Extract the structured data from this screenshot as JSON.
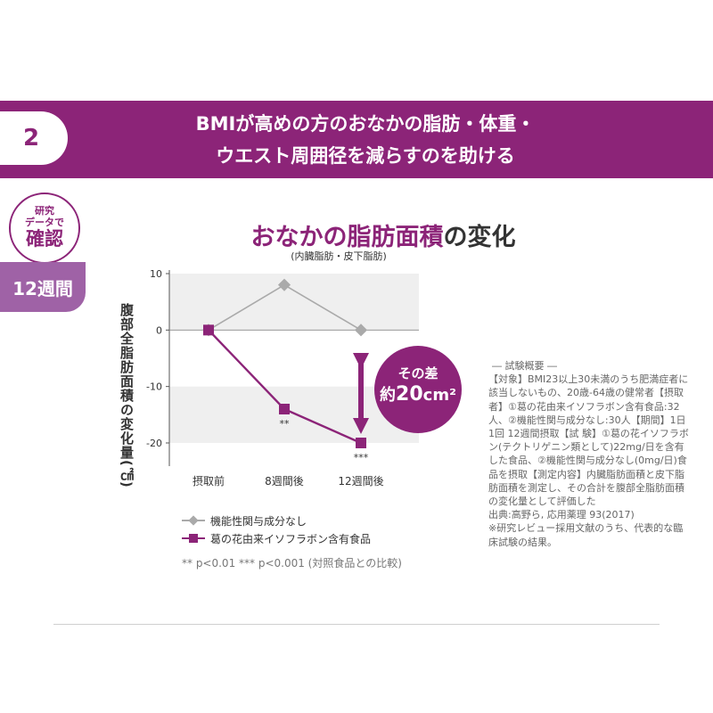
{
  "banner": {
    "number": "2",
    "line1": "BMIが高めの方のおなかの脂肪・体重・",
    "line2": "ウエスト周囲径を減らすのを助ける"
  },
  "badge": {
    "small1": "研究",
    "small2": "データで",
    "big": "確認"
  },
  "period": "12週間",
  "title_accent": "おなかの脂肪面積",
  "title_rest": "の変化",
  "subtitle": "(内臓脂肪・皮下脂肪)",
  "difference": {
    "line1": "その差",
    "prefix": "約",
    "value": "20",
    "unit": "cm²"
  },
  "legend": {
    "control": "機能性関与成分なし",
    "treatment": "葛の花由来イソフラボン含有食品"
  },
  "note": "** p<0.01 *** p<0.001 (対照食品との比較)",
  "info": {
    "heading": "― 試験概要 ―",
    "body": "【対象】BMI23以上30未満のうち肥満症者に該当しないもの、20歳-64歳の健常者【摂取者】①葛の花由来イソフラボン含有食品:32人、②機能性関与成分なし:30人【期間】1日1回 12週間摂取【試 験】①葛の花イソフラボン(テクトリゲニン類として)22mg/日を含有した食品、②機能性関与成分なし(0mg/日)食品を摂取【測定内容】内臓脂肪面積と皮下脂肪面積を測定し、その合計を腹部全脂肪面積の変化量として評価した",
    "source": "出典:高野ら, 応用薬理 93(2017)",
    "remark": "※研究レビュー採用文献のうち、代表的な臨床試験の結果。"
  },
  "chart_data": {
    "type": "line",
    "ylabel": "腹部全脂肪面積の変化量(㎠)",
    "categories": [
      "摂取前",
      "8週間後",
      "12週間後"
    ],
    "yticks": [
      10,
      0,
      -10,
      -20
    ],
    "ylim": [
      -24,
      10
    ],
    "grid": false,
    "series": [
      {
        "name": "機能性関与成分なし",
        "values": [
          0,
          8,
          0
        ],
        "color": "#aaaaaa"
      },
      {
        "name": "葛の花由来イソフラボン含有食品",
        "values": [
          0,
          -14,
          -20
        ],
        "color": "#8c2478",
        "significance": [
          "",
          "**",
          "***"
        ]
      }
    ]
  }
}
